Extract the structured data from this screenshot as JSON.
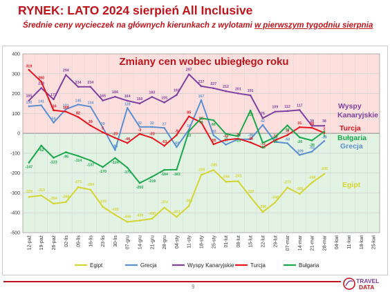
{
  "header": {
    "title": "RYNEK: LATO 2024 sierpień All Inclusive",
    "subtitle_pre": "Średnie ceny wycieczek na głównych kierunkach z wylotami ",
    "subtitle_underlined": "w pierwszym tygodniu sierpnia"
  },
  "page_number": "9",
  "logo": {
    "line1": "TRAVEL",
    "line2": "DATA"
  },
  "colors": {
    "egipt": "#d4d432",
    "grecja": "#5b8fcf",
    "wyspy": "#7f3f9f",
    "turcja": "#e8141c",
    "bulgaria": "#1aa64b",
    "brand": "#c0141c"
  },
  "chart_data": {
    "type": "line",
    "title": "Zmiany cen wobec ubiegłego roku",
    "ylim": [
      -500,
      400
    ],
    "yticks": [
      400,
      300,
      200,
      100,
      0,
      -100,
      -200,
      -300,
      -400,
      -500
    ],
    "grid": true,
    "legend_position": "bottom",
    "background_bands": {
      "positive": "#fde0de",
      "negative": "#e2f3e3"
    },
    "x": [
      "12-paź",
      "19-paź",
      "26-paź",
      "02-lis",
      "09-lis",
      "16-lis",
      "23-lis",
      "30-lis",
      "07-gru",
      "14-gru",
      "21-gru",
      "28-gru",
      "04-sty",
      "11-sty",
      "18-sty",
      "25-sty",
      "01-lut",
      "08-lut",
      "15-lut",
      "22-lut",
      "29-lut",
      "07-mar",
      "14-mar",
      "21-mar",
      "28-mar",
      "04-kwi",
      "11-kwi",
      "18-kwi",
      "25-kwi"
    ],
    "series": [
      {
        "name": "Egipt",
        "color": "#d4d432",
        "end_label": "Egipt",
        "values": [
          -320,
          -313,
          -354,
          -346,
          -271,
          -284,
          -370,
          -410,
          -446,
          -439,
          -430,
          -374,
          -421,
          -366,
          -209,
          -185,
          -244,
          -241,
          -320,
          -396,
          -348,
          -273,
          -305,
          -248,
          -205,
          null,
          null,
          null,
          null
        ]
      },
      {
        "name": "Grecja",
        "color": "#5b8fcf",
        "end_label": "Grecja",
        "values": [
          136,
          141,
          54,
          121,
          145,
          134,
          29,
          -84,
          128,
          32,
          32,
          27,
          -69,
          18,
          167,
          -10,
          -57,
          -30,
          -30,
          42,
          -43,
          -50,
          -109,
          -92,
          -39,
          null,
          null,
          null,
          null
        ]
      },
      {
        "name": "Wyspy Kanaryjskie",
        "color": "#7f3f9f",
        "end_label": "Wyspy Kanaryjskie",
        "values": [
          165,
          228,
          171,
          294,
          234,
          234,
          165,
          184,
          164,
          150,
          183,
          155,
          193,
          297,
          237,
          227,
          212,
          201,
          191,
          76,
          109,
          112,
          117,
          38,
          38,
          null,
          null,
          null,
          null
        ]
      },
      {
        "name": "Turcja",
        "color": "#e8141c",
        "end_label": "Turcja",
        "values": [
          319,
          260,
          116,
          109,
          82,
          39,
          5,
          -23,
          -49,
          -3,
          -23,
          -63,
          -9,
          85,
          55,
          -55,
          -33,
          -27,
          -46,
          -72,
          -35,
          -9,
          31,
          28,
          2,
          null,
          null,
          null,
          null
        ]
      },
      {
        "name": "Bułgaria",
        "color": "#1aa64b",
        "end_label": "Bułgaria",
        "values": [
          -147,
          -62,
          -123,
          -95,
          -114,
          -137,
          -170,
          -124,
          -173,
          -250,
          -219,
          -184,
          -183,
          10,
          76,
          66,
          -3,
          -15,
          115,
          -48,
          -20,
          40,
          -20,
          -36,
          9,
          null,
          null,
          null,
          null
        ]
      }
    ],
    "data_labels": {
      "Egipt": [
        "-320",
        "-313",
        "-354",
        "-346",
        "-271",
        "-284",
        "-370",
        "-410",
        "-446",
        "-439",
        "-430",
        "-374",
        "-421",
        "-366",
        "-209",
        "-185",
        "-244",
        "-241",
        "-320",
        "-396",
        "-348",
        "-273",
        "-305",
        "-248",
        "-205"
      ],
      "Grecja": [
        "136",
        "141",
        "54",
        "121",
        "145",
        "134",
        "29",
        "-84",
        "128",
        "32",
        "32",
        "27",
        "-69",
        "18",
        "167",
        "-10",
        "-57",
        "-30",
        "-30",
        "42",
        "-43",
        "-50",
        "-109",
        "-92",
        "-39"
      ],
      "Wyspy Kanaryjskie": [
        "165",
        "228",
        "171",
        "294",
        "234",
        "234",
        "165",
        "184",
        "164",
        "150",
        "183",
        "155",
        "193",
        "297",
        "237",
        "227",
        "212",
        "201",
        "191",
        "76",
        "109",
        "112",
        "117",
        "38",
        "38"
      ],
      "Turcja": [
        "319",
        "260",
        "116",
        "109",
        "82",
        "39",
        "5",
        "-23",
        "-49",
        "-3",
        "-23",
        "-63",
        "-9",
        "85",
        "55",
        "-55",
        "-33",
        "-27",
        "-46",
        "-72",
        "-35",
        "-9",
        "31",
        "28",
        "2"
      ],
      "Bułgaria": [
        "-147",
        "-62",
        "-123",
        "-95",
        "-114",
        "-137",
        "-170",
        "-124",
        "-173",
        "-250",
        "-219",
        "-184",
        "-183",
        "10",
        "76",
        "66",
        "-3",
        "-15",
        "115",
        "-48",
        "-20",
        "40",
        "-20",
        "-36",
        "9"
      ]
    }
  }
}
